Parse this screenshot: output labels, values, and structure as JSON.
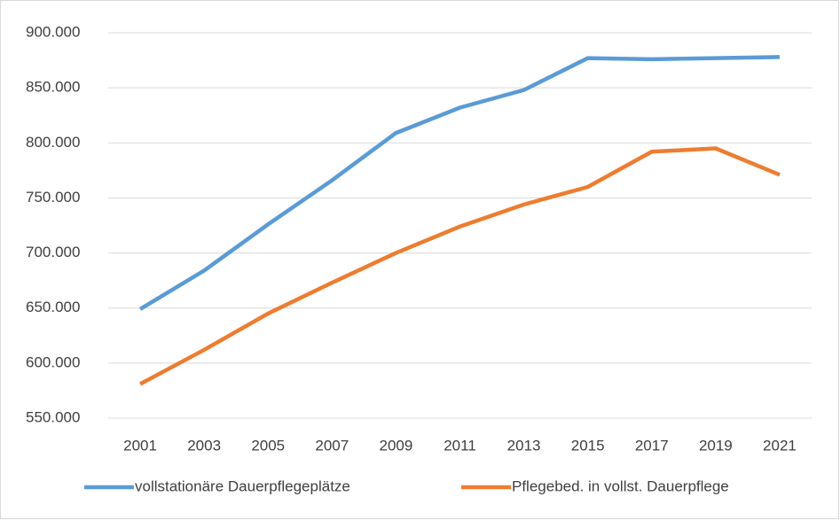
{
  "chart_data": {
    "type": "line",
    "categories": [
      "2001",
      "2003",
      "2005",
      "2007",
      "2009",
      "2011",
      "2013",
      "2015",
      "2017",
      "2019",
      "2021"
    ],
    "series": [
      {
        "name": "vollstationäre Dauerpflegeplätze",
        "color": "#5b9bd5",
        "values": [
          649000,
          684000,
          726000,
          766000,
          809000,
          832000,
          848000,
          877000,
          876000,
          877000,
          878000
        ]
      },
      {
        "name": "Pflegebed. in vollst. Dauerpflege",
        "color": "#ed7d31",
        "values": [
          581000,
          612000,
          645000,
          673000,
          700000,
          724000,
          744000,
          760000,
          792000,
          795000,
          771000
        ]
      }
    ],
    "ylim": [
      550000,
      900000
    ],
    "yticks": [
      {
        "value": 550000,
        "label": "550.000"
      },
      {
        "value": 600000,
        "label": "600.000"
      },
      {
        "value": 650000,
        "label": "650.000"
      },
      {
        "value": 700000,
        "label": "700.000"
      },
      {
        "value": 750000,
        "label": "750.000"
      },
      {
        "value": 800000,
        "label": "800.000"
      },
      {
        "value": 850000,
        "label": "850.000"
      },
      {
        "value": 900000,
        "label": "900.000"
      }
    ],
    "grid": true,
    "legend": "bottom"
  }
}
